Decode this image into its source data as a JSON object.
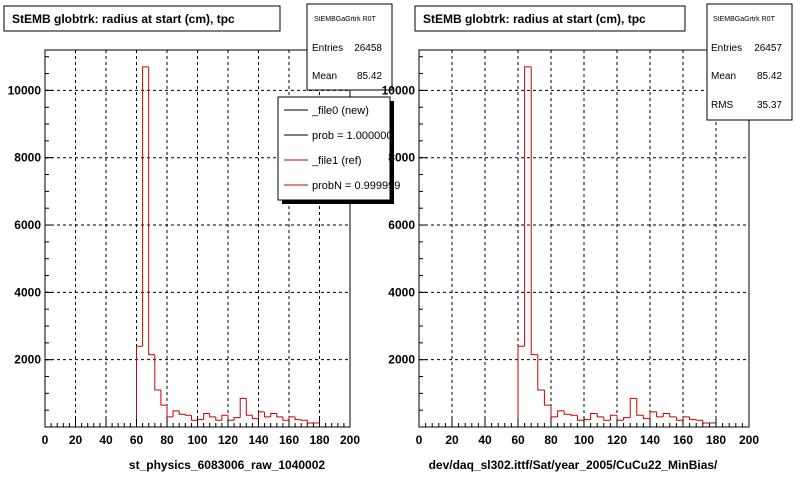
{
  "colors": {
    "ref": "#cc0000",
    "new": "#000000",
    "grid": "#000000",
    "frame": "#000000",
    "background": "#ffffff",
    "legend_shadow": "#000000"
  },
  "chart_data": [
    {
      "type": "bar",
      "title": "StEMB globtrk: radius at start (cm), tpc",
      "xlabel": "st_physics_6083006_raw_1040002",
      "ylabel": "",
      "xlim": [
        0,
        200
      ],
      "ylim": [
        0,
        11200
      ],
      "xticks": [
        "0",
        "20",
        "40",
        "60",
        "80",
        "100",
        "120",
        "140",
        "160",
        "180",
        "200"
      ],
      "yticks": [
        "2000",
        "4000",
        "6000",
        "8000",
        "10000"
      ],
      "grid": true,
      "bin_width": 4,
      "stats": {
        "header": "StEMBGaGrtrk R0T",
        "rows": [
          {
            "label": "Entries",
            "value": "26458"
          },
          {
            "label": "Mean",
            "value": "85.42"
          }
        ]
      },
      "legend": {
        "placement": "top-right",
        "entries": [
          {
            "label": "_file0 (new)",
            "color": "#000000"
          },
          {
            "label": "prob = 1.000000",
            "color": "#000000"
          },
          {
            "label": "_file1 (ref)",
            "color": "#cc0000"
          },
          {
            "label": "probN = 0.999999",
            "color": "#cc0000"
          }
        ]
      },
      "series": [
        {
          "name": "_file1 (ref)",
          "color": "#cc0000",
          "x": [
            0,
            4,
            8,
            12,
            16,
            20,
            24,
            28,
            32,
            36,
            40,
            44,
            48,
            52,
            56,
            60,
            64,
            68,
            72,
            76,
            80,
            84,
            88,
            92,
            96,
            100,
            104,
            108,
            112,
            116,
            120,
            124,
            128,
            132,
            136,
            140,
            144,
            148,
            152,
            156,
            160,
            164,
            168,
            172,
            176,
            180,
            184,
            188,
            192,
            196
          ],
          "values": [
            0,
            0,
            0,
            0,
            0,
            0,
            0,
            0,
            0,
            0,
            0,
            0,
            0,
            0,
            0,
            2400,
            10700,
            2150,
            1100,
            650,
            300,
            480,
            380,
            350,
            200,
            220,
            400,
            300,
            200,
            350,
            200,
            280,
            850,
            350,
            250,
            450,
            300,
            400,
            300,
            200,
            300,
            220,
            200,
            120,
            120,
            0,
            0,
            0,
            0,
            0
          ]
        }
      ]
    },
    {
      "type": "bar",
      "title": "StEMB globtrk: radius at start (cm), tpc",
      "xlabel": "dev/daq_sl302.ittf/Sat/year_2005/CuCu22_MinBias/",
      "ylabel": "",
      "xlim": [
        0,
        200
      ],
      "ylim": [
        0,
        11200
      ],
      "xticks": [
        "0",
        "20",
        "40",
        "60",
        "80",
        "100",
        "120",
        "140",
        "160",
        "180",
        "200"
      ],
      "yticks": [
        "2000",
        "4000",
        "6000",
        "8000",
        "10000"
      ],
      "grid": true,
      "bin_width": 4,
      "stats": {
        "header": "StEMBGaGrtrk R0T",
        "rows": [
          {
            "label": "Entries",
            "value": "26457"
          },
          {
            "label": "Mean",
            "value": "85.42"
          },
          {
            "label": "RMS",
            "value": "35.37"
          }
        ]
      },
      "series": [
        {
          "name": "",
          "color": "#cc0000",
          "x": [
            0,
            4,
            8,
            12,
            16,
            20,
            24,
            28,
            32,
            36,
            40,
            44,
            48,
            52,
            56,
            60,
            64,
            68,
            72,
            76,
            80,
            84,
            88,
            92,
            96,
            100,
            104,
            108,
            112,
            116,
            120,
            124,
            128,
            132,
            136,
            140,
            144,
            148,
            152,
            156,
            160,
            164,
            168,
            172,
            176,
            180,
            184,
            188,
            192,
            196
          ],
          "values": [
            0,
            0,
            0,
            0,
            0,
            0,
            0,
            0,
            0,
            0,
            0,
            0,
            0,
            0,
            0,
            2400,
            10700,
            2150,
            1100,
            650,
            300,
            480,
            380,
            350,
            200,
            220,
            400,
            300,
            200,
            350,
            200,
            280,
            850,
            350,
            250,
            450,
            300,
            400,
            300,
            200,
            300,
            220,
            200,
            120,
            120,
            0,
            0,
            0,
            0,
            0
          ]
        }
      ]
    }
  ]
}
